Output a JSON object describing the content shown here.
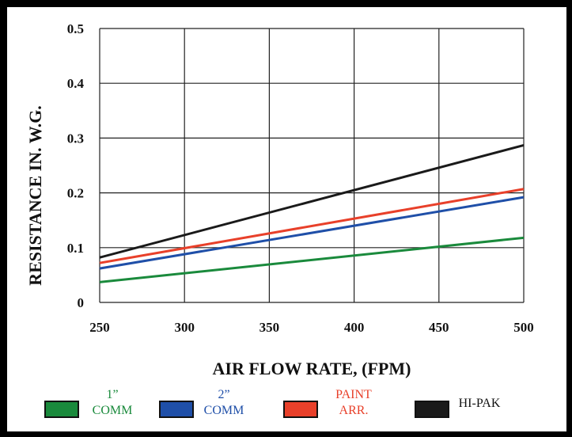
{
  "chart_data": {
    "type": "line",
    "xlabel": "AIR FLOW RATE, (FPM)",
    "ylabel": "RESISTANCE IN. W.G.",
    "xlim": [
      250,
      500
    ],
    "ylim": [
      0,
      0.5
    ],
    "x_ticks": [
      "250",
      "300",
      "350",
      "400",
      "450",
      "500"
    ],
    "y_ticks": [
      "0",
      "0.1",
      "0.2",
      "0.3",
      "0.4",
      "0.5"
    ],
    "grid": true,
    "legend_position": "bottom",
    "series": [
      {
        "name": "1\" COMM",
        "name_lines": [
          "1”",
          "COMM"
        ],
        "color": "#1a8a3c",
        "x": [
          250,
          500
        ],
        "y": [
          0.037,
          0.118
        ]
      },
      {
        "name": "2\" COMM",
        "name_lines": [
          "2”",
          "COMM"
        ],
        "color": "#1f4fa8",
        "x": [
          250,
          500
        ],
        "y": [
          0.062,
          0.192
        ]
      },
      {
        "name": "PAINT ARR.",
        "name_lines": [
          "PAINT",
          "ARR."
        ],
        "color": "#e8402a",
        "x": [
          250,
          500
        ],
        "y": [
          0.072,
          0.207
        ]
      },
      {
        "name": "HI-PAK",
        "name_lines": [
          "HI-PAK"
        ],
        "color": "#1a1a1a",
        "x": [
          250,
          500
        ],
        "y": [
          0.082,
          0.287
        ]
      }
    ]
  }
}
